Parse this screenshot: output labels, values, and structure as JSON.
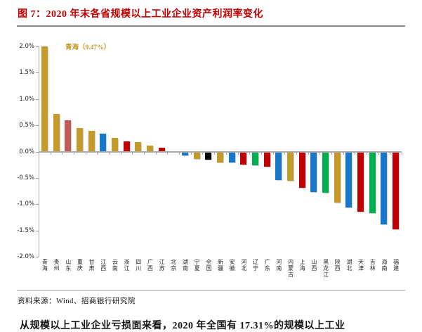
{
  "figure": {
    "title": "图 7：2020 年末各省规模以上工业企业资产利润率变化",
    "source": "资料来源：Wind、招商银行研究院",
    "body_text_clipped": "从规模以上工业企业亏损面来看，2020 年全国有 17.31%的规模以上工业",
    "title_accent_color": "#C00000"
  },
  "chart_data": {
    "type": "bar",
    "title": "2020 年末各省规模以上工业企业资产利润率变化",
    "xlabel": "",
    "ylabel": "",
    "unit": "%",
    "ylim": [
      -2.0,
      2.0
    ],
    "ytick_step": 0.5,
    "ytick_labels": [
      "2.0%",
      "1.5%",
      "1.0%",
      "0.5%",
      "0.0%",
      "-0.5%",
      "-1.0%",
      "-1.5%",
      "-2.0%"
    ],
    "grid": false,
    "legend": "none",
    "bar_clip_max": 2.0,
    "annotation": {
      "text": "青海（9.47%）",
      "target": "青海",
      "color": "#C49A2B"
    },
    "palette": {
      "gold": "#C49A2B",
      "salmon": "#C05B55",
      "blue": "#1777C8",
      "red": "#C00000",
      "green": "#00B050",
      "black": "#000000"
    },
    "categories": [
      "青海",
      "贵州",
      "山东",
      "重庆",
      "甘肃",
      "江西",
      "云南",
      "浙江",
      "四川",
      "广西",
      "江苏",
      "北京",
      "湖南",
      "宁夏",
      "全国",
      "新疆",
      "安徽",
      "河北",
      "辽宁",
      "广东",
      "河南",
      "内蒙古",
      "上海",
      "山西",
      "黑龙江",
      "陕西",
      "湖北",
      "天津",
      "吉林",
      "海南",
      "福建"
    ],
    "values": [
      9.47,
      0.72,
      0.6,
      0.45,
      0.39,
      0.34,
      0.26,
      0.2,
      0.18,
      0.12,
      0.07,
      0.01,
      -0.06,
      -0.13,
      -0.14,
      -0.19,
      -0.2,
      -0.24,
      -0.25,
      -0.28,
      -0.53,
      -0.54,
      -0.67,
      -0.75,
      -0.77,
      -0.96,
      -1.05,
      -1.13,
      -1.16,
      -1.37,
      -1.47
    ],
    "colors": [
      "gold",
      "gold",
      "salmon",
      "gold",
      "gold",
      "blue",
      "gold",
      "red",
      "gold",
      "gold",
      "red",
      "gold",
      "blue",
      "gold",
      "black",
      "gold",
      "blue",
      "red",
      "green",
      "red",
      "blue",
      "gold",
      "red",
      "blue",
      "green",
      "gold",
      "blue",
      "red",
      "green",
      "blue",
      "red"
    ]
  }
}
